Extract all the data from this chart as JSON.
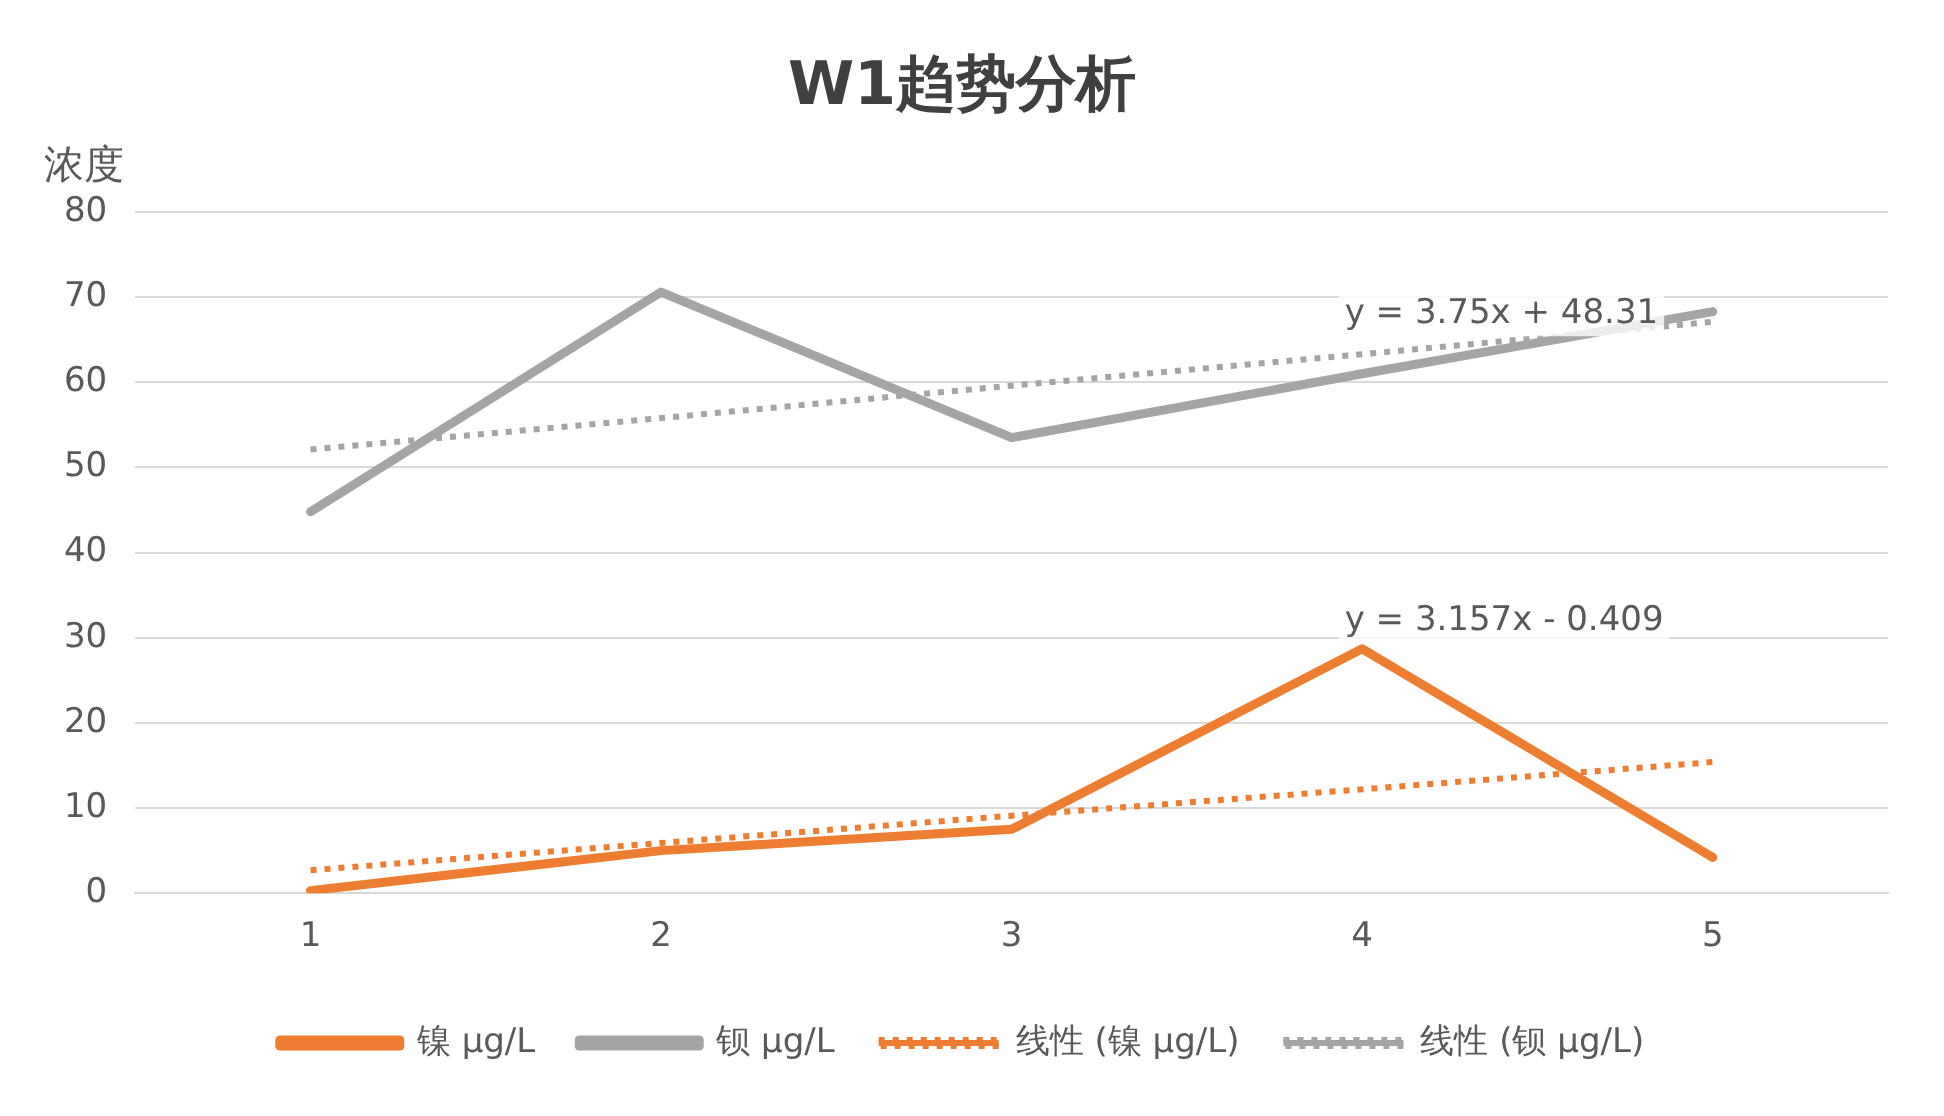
{
  "chart_data": {
    "type": "line",
    "title": "W1趋势分析",
    "ylabel": "浓度",
    "categories": [
      "1",
      "2",
      "3",
      "4",
      "5"
    ],
    "series": [
      {
        "name": "镍 μg/L",
        "color": "#ed7d31",
        "values": [
          0.3,
          5,
          7.5,
          28.7,
          4.2
        ],
        "line_style": "solid"
      },
      {
        "name": "钡 μg/L",
        "color": "#a5a5a5",
        "values": [
          44.8,
          70.6,
          53.5,
          61,
          68.3
        ],
        "line_style": "solid"
      },
      {
        "name": "线性 (镍 μg/L)",
        "color": "#ed7d31",
        "values": [
          2.7,
          5.9,
          9.1,
          12.2,
          15.4
        ],
        "line_style": "dotted"
      },
      {
        "name": "线性 (钡 μg/L)",
        "color": "#a5a5a5",
        "values": [
          52.1,
          55.8,
          59.6,
          63.3,
          67.1
        ],
        "line_style": "dotted"
      }
    ],
    "annotations": [
      "y = 3.75x + 48.31",
      "y = 3.157x - 0.409"
    ],
    "ylim": [
      0,
      80
    ],
    "yticks": [
      0,
      10,
      20,
      30,
      40,
      50,
      60,
      70,
      80
    ],
    "grid": "y",
    "legend": "bottom",
    "marker": "none"
  }
}
